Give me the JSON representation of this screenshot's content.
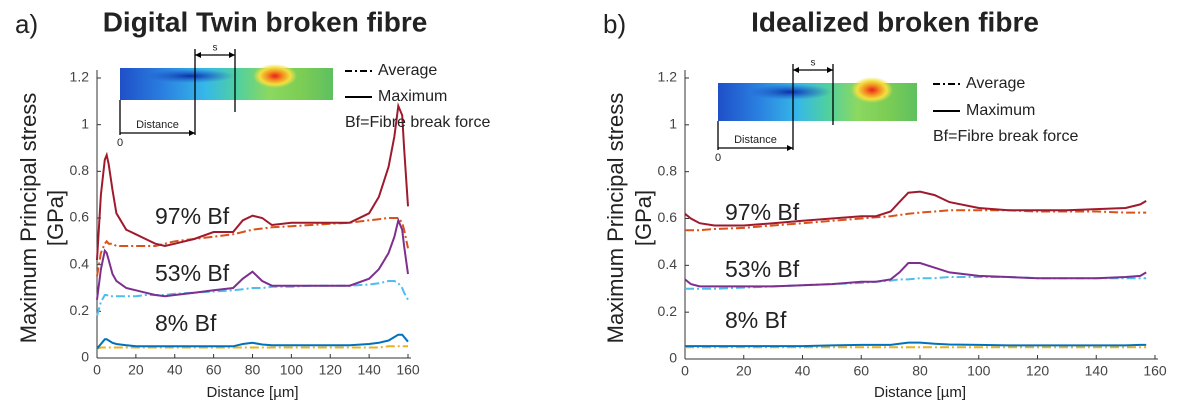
{
  "chart_data": [
    {
      "type": "line",
      "panel_label": "a)",
      "title": "Digital Twin broken fibre",
      "ylabel": [
        "Maximum Principal stress",
        "[GPa]"
      ],
      "xlabel": "Distance [µm]",
      "xlim": [
        0,
        160
      ],
      "xticks": [
        0,
        20,
        40,
        60,
        80,
        100,
        120,
        140,
        160
      ],
      "ylim": [
        0,
        1.2
      ],
      "yticks": [
        0,
        0.2,
        0.4,
        0.6,
        0.8,
        1,
        1.2
      ],
      "legend": [
        {
          "label": "Average",
          "style": "dashdot"
        },
        {
          "label": "Maximum",
          "style": "solid"
        }
      ],
      "note": "Bf=Fibre break force",
      "inset": {
        "distance_label": "Distance",
        "s_label": "s",
        "origin_label": "0"
      },
      "x": [
        0,
        2,
        4,
        5,
        6,
        8,
        10,
        15,
        20,
        25,
        30,
        35,
        40,
        50,
        60,
        70,
        75,
        80,
        85,
        90,
        100,
        110,
        120,
        130,
        140,
        145,
        150,
        153,
        155,
        157,
        158,
        160
      ],
      "groups": [
        {
          "name": "97% Bf",
          "color": "#a01a2e",
          "maximum": {
            "color": "#a01a2e",
            "values": [
              0.42,
              0.7,
              0.85,
              0.87,
              0.83,
              0.72,
              0.62,
              0.55,
              0.53,
              0.51,
              0.49,
              0.48,
              0.49,
              0.51,
              0.54,
              0.54,
              0.59,
              0.61,
              0.6,
              0.57,
              0.58,
              0.58,
              0.58,
              0.58,
              0.62,
              0.69,
              0.82,
              0.95,
              1.08,
              1.04,
              0.9,
              0.65
            ]
          },
          "average": {
            "color": "#d95319",
            "values": [
              0.35,
              0.45,
              0.49,
              0.5,
              0.49,
              0.49,
              0.48,
              0.48,
              0.48,
              0.48,
              0.48,
              0.49,
              0.5,
              0.51,
              0.52,
              0.53,
              0.54,
              0.55,
              0.555,
              0.56,
              0.565,
              0.57,
              0.575,
              0.58,
              0.59,
              0.595,
              0.6,
              0.6,
              0.6,
              0.58,
              0.55,
              0.47
            ]
          }
        },
        {
          "name": "53% Bf",
          "color": "#7e2f8e",
          "maximum": {
            "color": "#7e2f8e",
            "values": [
              0.25,
              0.38,
              0.46,
              0.45,
              0.42,
              0.36,
              0.33,
              0.3,
              0.29,
              0.28,
              0.27,
              0.265,
              0.27,
              0.28,
              0.29,
              0.3,
              0.34,
              0.37,
              0.33,
              0.31,
              0.31,
              0.31,
              0.31,
              0.31,
              0.34,
              0.38,
              0.45,
              0.52,
              0.59,
              0.55,
              0.48,
              0.36
            ]
          },
          "average": {
            "color": "#4dbeee",
            "values": [
              0.18,
              0.24,
              0.27,
              0.27,
              0.265,
              0.265,
              0.265,
              0.265,
              0.265,
              0.27,
              0.27,
              0.27,
              0.275,
              0.28,
              0.285,
              0.29,
              0.295,
              0.3,
              0.3,
              0.305,
              0.305,
              0.31,
              0.31,
              0.31,
              0.315,
              0.32,
              0.33,
              0.33,
              0.32,
              0.3,
              0.28,
              0.25
            ]
          }
        },
        {
          "name": "8% Bf",
          "color": "#0072bd",
          "maximum": {
            "color": "#0072bd",
            "values": [
              0.04,
              0.06,
              0.08,
              0.08,
              0.075,
              0.065,
              0.06,
              0.055,
              0.05,
              0.05,
              0.05,
              0.05,
              0.05,
              0.05,
              0.05,
              0.05,
              0.06,
              0.065,
              0.058,
              0.055,
              0.055,
              0.055,
              0.055,
              0.055,
              0.06,
              0.065,
              0.075,
              0.09,
              0.1,
              0.1,
              0.09,
              0.07
            ]
          },
          "average": {
            "color": "#edb120",
            "values": [
              0.04,
              0.045,
              0.045,
              0.045,
              0.045,
              0.045,
              0.045,
              0.045,
              0.045,
              0.045,
              0.045,
              0.045,
              0.045,
              0.045,
              0.045,
              0.045,
              0.045,
              0.045,
              0.045,
              0.045,
              0.045,
              0.045,
              0.045,
              0.045,
              0.045,
              0.045,
              0.05,
              0.05,
              0.05,
              0.05,
              0.05,
              0.05
            ]
          }
        }
      ]
    },
    {
      "type": "line",
      "panel_label": "b)",
      "title": "Idealized broken fibre",
      "ylabel": [
        "Maximum Principal stress",
        "[GPa]"
      ],
      "xlabel": "Distance [µm]",
      "xlim": [
        0,
        160
      ],
      "xticks": [
        0,
        20,
        40,
        60,
        80,
        100,
        120,
        140,
        160
      ],
      "ylim": [
        0,
        1.2
      ],
      "yticks": [
        0,
        0.2,
        0.4,
        0.6,
        0.8,
        1,
        1.2
      ],
      "legend": [
        {
          "label": "Average",
          "style": "dashdot"
        },
        {
          "label": "Maximum",
          "style": "solid"
        }
      ],
      "note": "Bf=Fibre break force",
      "inset": {
        "distance_label": "Distance",
        "s_label": "s",
        "origin_label": "0"
      },
      "x": [
        0,
        2,
        5,
        10,
        20,
        30,
        40,
        50,
        60,
        65,
        70,
        73,
        76,
        80,
        85,
        90,
        100,
        110,
        120,
        130,
        140,
        150,
        155,
        157
      ],
      "groups": [
        {
          "name": "97% Bf",
          "color": "#a01a2e",
          "maximum": {
            "color": "#a01a2e",
            "values": [
              0.62,
              0.6,
              0.58,
              0.57,
              0.57,
              0.58,
              0.59,
              0.6,
              0.61,
              0.61,
              0.63,
              0.67,
              0.71,
              0.715,
              0.7,
              0.67,
              0.645,
              0.635,
              0.635,
              0.635,
              0.64,
              0.645,
              0.66,
              0.675
            ]
          },
          "average": {
            "color": "#d95319",
            "values": [
              0.55,
              0.55,
              0.55,
              0.555,
              0.56,
              0.57,
              0.58,
              0.59,
              0.6,
              0.605,
              0.61,
              0.615,
              0.62,
              0.625,
              0.63,
              0.635,
              0.635,
              0.635,
              0.63,
              0.63,
              0.63,
              0.625,
              0.625,
              0.625
            ]
          }
        },
        {
          "name": "53% Bf",
          "color": "#7e2f8e",
          "maximum": {
            "color": "#7e2f8e",
            "values": [
              0.34,
              0.32,
              0.31,
              0.31,
              0.31,
              0.31,
              0.315,
              0.32,
              0.33,
              0.33,
              0.34,
              0.37,
              0.41,
              0.41,
              0.39,
              0.37,
              0.355,
              0.35,
              0.345,
              0.345,
              0.345,
              0.35,
              0.355,
              0.37
            ]
          },
          "average": {
            "color": "#4dbeee",
            "values": [
              0.3,
              0.3,
              0.3,
              0.3,
              0.305,
              0.31,
              0.315,
              0.32,
              0.325,
              0.33,
              0.335,
              0.34,
              0.34,
              0.345,
              0.345,
              0.35,
              0.35,
              0.35,
              0.345,
              0.345,
              0.345,
              0.345,
              0.345,
              0.345
            ]
          }
        },
        {
          "name": "8% Bf",
          "color": "#0072bd",
          "maximum": {
            "color": "#0072bd",
            "values": [
              0.055,
              0.055,
              0.055,
              0.055,
              0.055,
              0.055,
              0.055,
              0.058,
              0.06,
              0.06,
              0.06,
              0.065,
              0.07,
              0.07,
              0.065,
              0.062,
              0.06,
              0.058,
              0.058,
              0.058,
              0.058,
              0.058,
              0.06,
              0.06
            ]
          },
          "average": {
            "color": "#edb120",
            "values": [
              0.05,
              0.05,
              0.05,
              0.05,
              0.05,
              0.05,
              0.05,
              0.05,
              0.05,
              0.05,
              0.05,
              0.05,
              0.05,
              0.05,
              0.05,
              0.05,
              0.05,
              0.05,
              0.05,
              0.05,
              0.05,
              0.05,
              0.05,
              0.05
            ]
          }
        }
      ]
    }
  ]
}
